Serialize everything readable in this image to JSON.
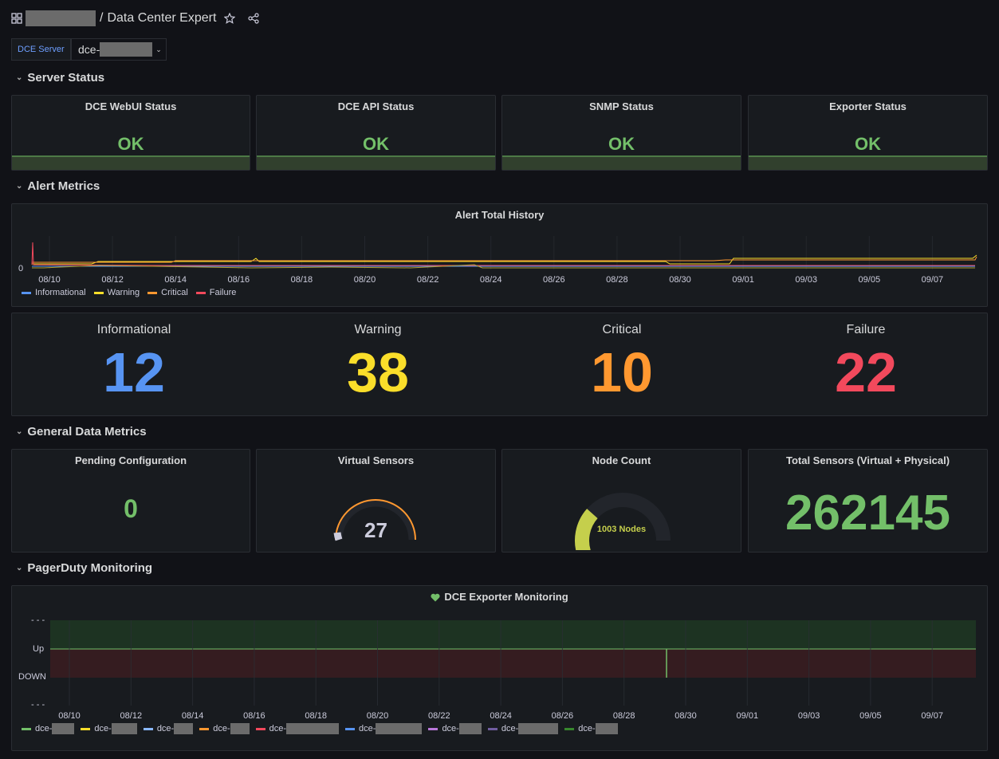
{
  "header": {
    "breadcrumb_separator": "/",
    "title": "Data Center Expert"
  },
  "variables": {
    "label": "DCE Server",
    "value": "dce-"
  },
  "sections": {
    "server_status": "Server Status",
    "alert_metrics": "Alert Metrics",
    "general_data": "General Data Metrics",
    "pagerduty": "PagerDuty Monitoring"
  },
  "status_panels": [
    {
      "title": "DCE WebUI Status",
      "value": "OK"
    },
    {
      "title": "DCE API Status",
      "value": "OK"
    },
    {
      "title": "SNMP Status",
      "value": "OK"
    },
    {
      "title": "Exporter Status",
      "value": "OK"
    }
  ],
  "alert_history": {
    "title": "Alert Total History",
    "y_tick": "0",
    "x_ticks": [
      "08/10",
      "08/12",
      "08/14",
      "08/16",
      "08/18",
      "08/20",
      "08/22",
      "08/24",
      "08/26",
      "08/28",
      "08/30",
      "09/01",
      "09/03",
      "09/05",
      "09/07"
    ],
    "legend": [
      {
        "name": "Informational",
        "color": "#5794f2"
      },
      {
        "name": "Warning",
        "color": "#fade2a"
      },
      {
        "name": "Critical",
        "color": "#ff9830"
      },
      {
        "name": "Failure",
        "color": "#f2495c"
      }
    ]
  },
  "alert_counts": [
    {
      "label": "Informational",
      "value": "12",
      "color": "#5794f2"
    },
    {
      "label": "Warning",
      "value": "38",
      "color": "#fade2a"
    },
    {
      "label": "Critical",
      "value": "10",
      "color": "#ff9830"
    },
    {
      "label": "Failure",
      "value": "22",
      "color": "#f2495c"
    }
  ],
  "general": {
    "pending_title": "Pending Configuration",
    "pending_value": "0",
    "virtual_title": "Virtual Sensors",
    "virtual_value": "27",
    "node_title": "Node Count",
    "node_value": "1003 Nodes",
    "node_fraction": 0.28,
    "total_title": "Total Sensors (Virtual + Physical)",
    "total_value": "262145"
  },
  "pagerduty": {
    "title": "DCE Exporter Monitoring",
    "y_ticks": [
      "- - -",
      "Up",
      "DOWN",
      "- - -"
    ],
    "x_ticks": [
      "08/10",
      "08/12",
      "08/14",
      "08/16",
      "08/18",
      "08/20",
      "08/22",
      "08/24",
      "08/26",
      "08/28",
      "08/30",
      "09/01",
      "09/03",
      "09/05",
      "09/07"
    ],
    "legend": [
      {
        "name": "dce-",
        "color": "#73bf69"
      },
      {
        "name": "dce-",
        "color": "#fade2a"
      },
      {
        "name": "dce-",
        "color": "#8ab8ff"
      },
      {
        "name": "dce-",
        "color": "#ff9830"
      },
      {
        "name": "dce-",
        "color": "#f2495c"
      },
      {
        "name": "dce-",
        "color": "#5794f2"
      },
      {
        "name": "dce-",
        "color": "#b877d9"
      },
      {
        "name": "dce-",
        "color": "#705da0"
      },
      {
        "name": "dce-",
        "color": "#37872d"
      }
    ]
  },
  "colors": {
    "ok": "#73bf69",
    "accent": "#6e9fff"
  }
}
